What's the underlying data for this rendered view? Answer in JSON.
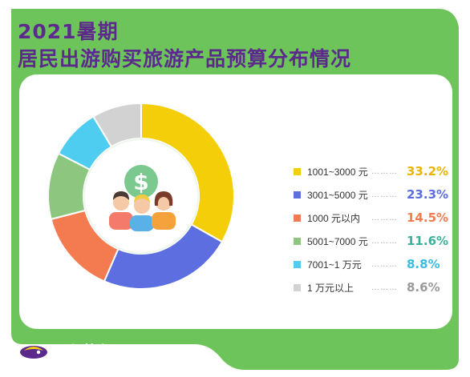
{
  "title": {
    "line1": "2021暑期",
    "line2": "居民出游购买旅游产品预算分布情况"
  },
  "brand": {
    "name": "同程旅行"
  },
  "legend_dots": "………",
  "colors": {
    "frame": "#6dc45a",
    "title": "#5b2a8c",
    "card": "#ffffff",
    "people_circle": "#eef7ee",
    "dollar_coin": "#7cc98f"
  },
  "chart_data": {
    "type": "pie",
    "style": "donut",
    "categories": [
      "1001~3000 元",
      "3001~5000 元",
      "1000 元以内",
      "5001~7000 元",
      "7001~1 万元",
      "1 万元以上"
    ],
    "values": [
      33.2,
      23.3,
      14.5,
      11.6,
      8.8,
      8.6
    ],
    "value_labels": [
      "33.2%",
      "23.3%",
      "14.5%",
      "11.6%",
      "8.8%",
      "8.6%"
    ],
    "colors": [
      "#f5ce0a",
      "#5c6ee0",
      "#f47b50",
      "#8dc77f",
      "#4fcdf0",
      "#d2d2d2"
    ],
    "value_colors": [
      "#e8b500",
      "#5c6ee0",
      "#f47b50",
      "#3ab09a",
      "#3bbde0",
      "#9a9a9a"
    ],
    "start_angle_deg": 0,
    "direction": "clockwise",
    "legend": "right"
  }
}
